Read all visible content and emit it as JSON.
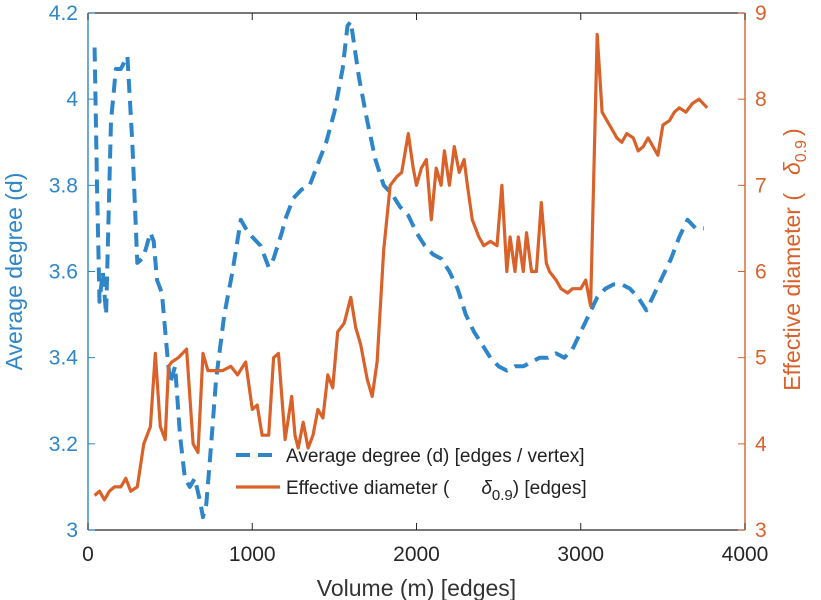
{
  "chart_data": {
    "type": "line",
    "xlabel": "Volume (m) [edges]",
    "xlim": [
      0,
      4000
    ],
    "xticks": [
      "0",
      "1000",
      "2000",
      "3000",
      "4000"
    ],
    "y_left": {
      "label": "Average degree (d)",
      "lim": [
        3.0,
        4.2
      ],
      "ticks": [
        "3",
        "3.2",
        "3.4",
        "3.6",
        "3.8",
        "4",
        "4.2"
      ],
      "color": "#2e86c9"
    },
    "y_right": {
      "label_prefix": "Effective diameter (",
      "label_symbol": "δ",
      "label_sub": "0.9",
      "label_suffix": ")",
      "lim": [
        3,
        9
      ],
      "ticks": [
        "3",
        "4",
        "5",
        "6",
        "7",
        "8",
        "9"
      ],
      "color": "#d9622b"
    },
    "legend_position": "bottom-center",
    "series": [
      {
        "name": "Average degree (d) [edges / vertex]",
        "axis": "left",
        "style": "dashed",
        "color": "#2e86c9",
        "x": [
          40,
          55,
          70,
          90,
          110,
          140,
          170,
          200,
          240,
          270,
          300,
          330,
          350,
          380,
          400,
          420,
          450,
          480,
          500,
          530,
          560,
          590,
          620,
          650,
          680,
          700,
          720,
          750,
          780,
          830,
          880,
          930,
          960,
          1000,
          1050,
          1100,
          1130,
          1180,
          1200,
          1250,
          1300,
          1350,
          1400,
          1450,
          1500,
          1550,
          1580,
          1600,
          1650,
          1700,
          1750,
          1800,
          1850,
          1900,
          1950,
          2000,
          2050,
          2100,
          2150,
          2200,
          2250,
          2300,
          2350,
          2400,
          2450,
          2500,
          2550,
          2600,
          2650,
          2700,
          2750,
          2800,
          2850,
          2900,
          2950,
          3000,
          3050,
          3100,
          3150,
          3200,
          3250,
          3300,
          3350,
          3400,
          3450,
          3500,
          3550,
          3600,
          3650,
          3700,
          3750
        ],
        "y": [
          4.12,
          3.8,
          3.53,
          3.6,
          3.5,
          3.95,
          4.07,
          4.07,
          4.1,
          3.9,
          3.62,
          3.63,
          3.65,
          3.69,
          3.67,
          3.58,
          3.55,
          3.42,
          3.34,
          3.38,
          3.22,
          3.12,
          3.1,
          3.12,
          3.07,
          3.03,
          3.06,
          3.2,
          3.35,
          3.5,
          3.6,
          3.72,
          3.7,
          3.68,
          3.66,
          3.61,
          3.63,
          3.69,
          3.72,
          3.77,
          3.79,
          3.8,
          3.85,
          3.9,
          3.97,
          4.07,
          4.17,
          4.18,
          4.05,
          3.95,
          3.86,
          3.8,
          3.78,
          3.75,
          3.73,
          3.69,
          3.66,
          3.64,
          3.63,
          3.6,
          3.56,
          3.5,
          3.46,
          3.43,
          3.4,
          3.38,
          3.37,
          3.38,
          3.38,
          3.39,
          3.4,
          3.4,
          3.41,
          3.4,
          3.42,
          3.46,
          3.5,
          3.54,
          3.56,
          3.57,
          3.57,
          3.56,
          3.54,
          3.51,
          3.55,
          3.59,
          3.63,
          3.68,
          3.72,
          3.7,
          3.7
        ]
      },
      {
        "name": "Effective diameter (δ0.9) [edges]",
        "axis": "right",
        "style": "solid",
        "color": "#d9622b",
        "x": [
          40,
          70,
          100,
          130,
          160,
          200,
          230,
          260,
          300,
          340,
          380,
          410,
          440,
          470,
          490,
          510,
          550,
          600,
          640,
          670,
          700,
          730,
          770,
          820,
          870,
          910,
          960,
          1000,
          1030,
          1060,
          1100,
          1130,
          1160,
          1200,
          1240,
          1260,
          1280,
          1310,
          1340,
          1370,
          1400,
          1430,
          1460,
          1490,
          1520,
          1560,
          1600,
          1630,
          1660,
          1700,
          1730,
          1760,
          1800,
          1840,
          1880,
          1910,
          1950,
          1980,
          2000,
          2030,
          2060,
          2090,
          2120,
          2150,
          2170,
          2200,
          2230,
          2260,
          2290,
          2310,
          2340,
          2380,
          2410,
          2450,
          2490,
          2520,
          2550,
          2570,
          2600,
          2620,
          2650,
          2670,
          2700,
          2730,
          2760,
          2790,
          2810,
          2850,
          2880,
          2920,
          2950,
          3000,
          3030,
          3060,
          3100,
          3130,
          3160,
          3190,
          3220,
          3250,
          3280,
          3320,
          3350,
          3380,
          3410,
          3440,
          3470,
          3500,
          3540,
          3570,
          3600,
          3640,
          3680,
          3720,
          3770
        ],
        "y": [
          3.4,
          3.45,
          3.35,
          3.45,
          3.5,
          3.5,
          3.6,
          3.45,
          3.5,
          4.0,
          4.2,
          5.05,
          4.2,
          4.05,
          4.9,
          4.95,
          5.0,
          5.1,
          4.0,
          3.9,
          5.05,
          4.85,
          4.85,
          4.85,
          4.9,
          4.8,
          4.95,
          4.4,
          4.45,
          4.1,
          4.1,
          5.0,
          5.05,
          4.05,
          4.55,
          4.1,
          3.95,
          4.25,
          3.95,
          4.1,
          4.4,
          4.3,
          4.8,
          4.65,
          5.3,
          5.4,
          5.7,
          5.35,
          5.15,
          4.75,
          4.55,
          4.95,
          6.25,
          7.0,
          7.1,
          7.15,
          7.6,
          7.2,
          7.0,
          7.2,
          7.3,
          6.6,
          7.2,
          7.0,
          7.4,
          7.0,
          7.45,
          7.15,
          7.3,
          7.0,
          6.6,
          6.4,
          6.3,
          6.35,
          6.3,
          7.0,
          6.0,
          6.4,
          6.0,
          6.4,
          6.0,
          6.45,
          6.0,
          6.0,
          6.8,
          6.1,
          6.0,
          5.9,
          5.8,
          5.75,
          5.8,
          5.8,
          5.9,
          5.6,
          8.75,
          7.85,
          7.75,
          7.65,
          7.55,
          7.5,
          7.6,
          7.55,
          7.4,
          7.45,
          7.55,
          7.45,
          7.35,
          7.7,
          7.75,
          7.85,
          7.9,
          7.85,
          7.95,
          8.0,
          7.9
        ]
      }
    ]
  }
}
